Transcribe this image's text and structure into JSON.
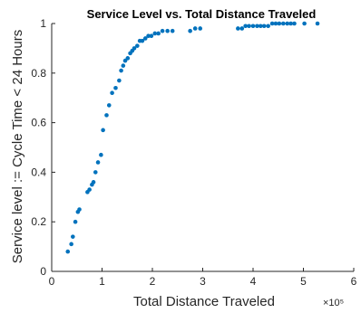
{
  "chart_data": {
    "type": "scatter",
    "title": "Service Level vs. Total Distance Traveled",
    "xlabel": "Total Distance Traveled",
    "ylabel": "Service level := Cycle Time < 24 Hours",
    "x_exponent_label": "×10⁵",
    "xlim": [
      0,
      6
    ],
    "ylim": [
      0,
      1
    ],
    "x_ticks": [
      "0",
      "1",
      "2",
      "3",
      "4",
      "5",
      "6"
    ],
    "y_ticks": [
      "0",
      "0.2",
      "0.4",
      "0.6",
      "0.8",
      "1"
    ],
    "grid": false,
    "marker_color": "#0072BD",
    "axis_color": "#262626",
    "series": [
      {
        "x": [
          0.32,
          0.39,
          0.42,
          0.47,
          0.52,
          0.55,
          0.71,
          0.75,
          0.8,
          0.83,
          0.87,
          0.92,
          0.98,
          1.02,
          1.09,
          1.14,
          1.2,
          1.27,
          1.34,
          1.38,
          1.42,
          1.46,
          1.51,
          1.56,
          1.6,
          1.64,
          1.7,
          1.75,
          1.8,
          1.86,
          1.92,
          1.98,
          2.05,
          2.12,
          2.2,
          2.3,
          2.4,
          2.75,
          2.85,
          2.95,
          3.7,
          3.78,
          3.85,
          3.92,
          4.0,
          4.08,
          4.15,
          4.22,
          4.3,
          4.38,
          4.45,
          4.52,
          4.6,
          4.68,
          4.75,
          4.82,
          5.02,
          5.28
        ],
        "y": [
          0.08,
          0.11,
          0.14,
          0.2,
          0.24,
          0.25,
          0.32,
          0.33,
          0.35,
          0.36,
          0.4,
          0.44,
          0.47,
          0.57,
          0.63,
          0.67,
          0.72,
          0.74,
          0.77,
          0.81,
          0.83,
          0.85,
          0.86,
          0.88,
          0.89,
          0.9,
          0.91,
          0.93,
          0.93,
          0.94,
          0.95,
          0.95,
          0.96,
          0.96,
          0.97,
          0.97,
          0.97,
          0.97,
          0.98,
          0.98,
          0.98,
          0.98,
          0.99,
          0.99,
          0.99,
          0.99,
          0.99,
          0.99,
          0.99,
          1.0,
          1.0,
          1.0,
          1.0,
          1.0,
          1.0,
          1.0,
          1.0,
          1.0
        ]
      }
    ]
  }
}
